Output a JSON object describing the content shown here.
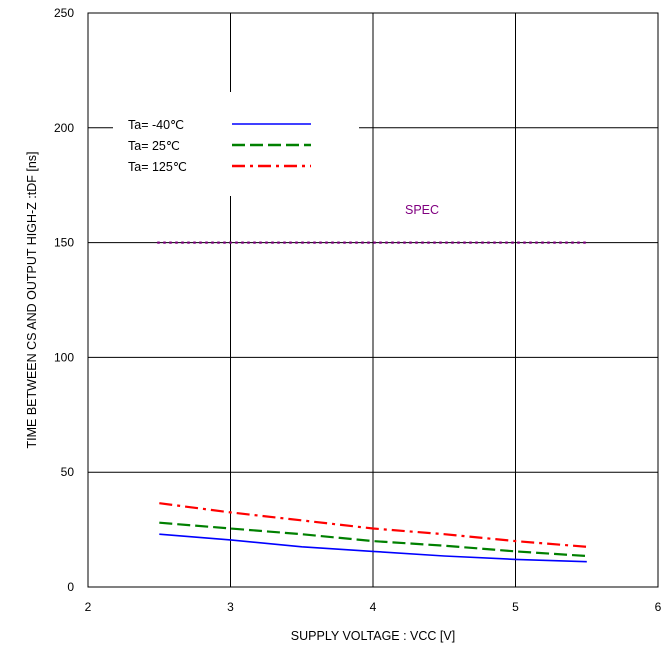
{
  "chart_data": {
    "type": "line",
    "xlabel": "SUPPLY VOLTAGE : VCC [V]",
    "ylabel": "TIME BETWEEN CS AND OUTPUT HIGH-Z :tDF   [ns]",
    "xlim": [
      2,
      6
    ],
    "ylim": [
      0,
      250
    ],
    "xticks": [
      "2",
      "3",
      "4",
      "5",
      "6"
    ],
    "yticks": [
      "0",
      "50",
      "100",
      "150",
      "200",
      "250"
    ],
    "grid": true,
    "legend_position": "top-left",
    "series": [
      {
        "name": "Ta= -40℃",
        "color": "#0000ff",
        "style": "solid",
        "x": [
          2.5,
          3.0,
          3.5,
          4.0,
          4.5,
          5.0,
          5.5
        ],
        "y": [
          23,
          20.5,
          17.5,
          15.5,
          13.5,
          12,
          11
        ]
      },
      {
        "name": "Ta=  25℃",
        "color": "#008000",
        "style": "dashed",
        "x": [
          2.5,
          3.0,
          3.5,
          4.0,
          4.5,
          5.0,
          5.5
        ],
        "y": [
          28,
          25.5,
          23,
          20,
          18,
          15.5,
          13.5
        ]
      },
      {
        "name": "Ta= 125℃",
        "color": "#ff0000",
        "style": "dashdot",
        "x": [
          2.5,
          3.0,
          3.5,
          4.0,
          4.5,
          5.0,
          5.5
        ],
        "y": [
          36.5,
          32.5,
          29,
          25.5,
          23,
          20,
          17.5
        ]
      }
    ],
    "spec": {
      "label": "SPEC",
      "value": 150,
      "x_range": [
        2.5,
        5.5
      ],
      "color": "#800080"
    }
  }
}
